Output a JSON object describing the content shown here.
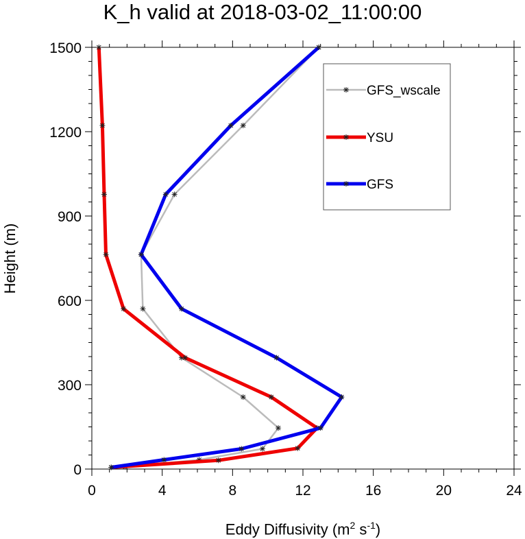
{
  "chart_data": {
    "type": "line",
    "title": "K_h valid at 2018-03-02_11:00:00",
    "xlabel": "Eddy Diffusivity (m",
    "xlabel_unit_sup1": "2",
    "xlabel_unit_mid": " s",
    "xlabel_unit_sup2": "-1",
    "xlabel_unit_end": ")",
    "ylabel": "Height (m)",
    "xlim": [
      0,
      24
    ],
    "ylim": [
      0,
      1500
    ],
    "xticks": [
      "0",
      "4",
      "8",
      "12",
      "16",
      "20",
      "24"
    ],
    "yticks": [
      "0",
      "300",
      "600",
      "900",
      "1200",
      "1500"
    ],
    "xtick_values": [
      0,
      4,
      8,
      12,
      16,
      20,
      24
    ],
    "ytick_values": [
      0,
      300,
      600,
      900,
      1200,
      1500
    ],
    "legend_position": "top-right",
    "series": [
      {
        "name": "GFS_wscale",
        "color": "#bbbbbb",
        "points": [
          [
            1.9,
            8
          ],
          [
            6.1,
            33
          ],
          [
            9.7,
            72
          ],
          [
            10.6,
            146
          ],
          [
            8.6,
            256
          ],
          [
            5.1,
            396
          ],
          [
            2.9,
            570
          ],
          [
            2.8,
            763
          ],
          [
            4.7,
            977
          ],
          [
            8.6,
            1222
          ],
          [
            12.9,
            1500
          ]
        ]
      },
      {
        "name": "YSU",
        "color": "#ee0000",
        "points": [
          [
            1.1,
            6
          ],
          [
            7.2,
            31
          ],
          [
            11.7,
            74
          ],
          [
            12.8,
            146
          ],
          [
            10.2,
            256
          ],
          [
            5.3,
            396
          ],
          [
            1.8,
            570
          ],
          [
            0.8,
            763
          ],
          [
            0.7,
            977
          ],
          [
            0.6,
            1222
          ],
          [
            0.4,
            1500
          ]
        ]
      },
      {
        "name": "GFS",
        "color": "#0000ee",
        "points": [
          [
            1.1,
            6
          ],
          [
            4.1,
            33
          ],
          [
            8.5,
            72
          ],
          [
            13.0,
            146
          ],
          [
            14.2,
            256
          ],
          [
            10.5,
            396
          ],
          [
            5.1,
            570
          ],
          [
            2.8,
            763
          ],
          [
            4.2,
            977
          ],
          [
            7.9,
            1222
          ],
          [
            12.9,
            1500
          ]
        ]
      }
    ]
  }
}
